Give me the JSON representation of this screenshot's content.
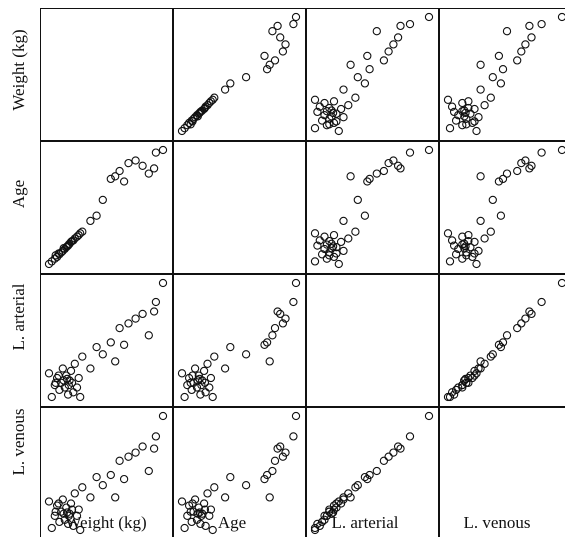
{
  "chart_data": {
    "type": "scatter",
    "variables": [
      "Weight (kg)",
      "Age",
      "L. arterial",
      "L. venous"
    ],
    "grid": false,
    "subjects": [
      {
        "weight": 10.6,
        "age": 1.6,
        "l_arterial": 21.0,
        "l_venous": 23.5
      },
      {
        "weight": 12.2,
        "age": 2.6,
        "l_arterial": 16.0,
        "l_venous": 17.0
      },
      {
        "weight": 13.9,
        "age": 3.6,
        "l_arterial": 18.5,
        "l_venous": 20.0
      },
      {
        "weight": 15.2,
        "age": 4.3,
        "l_arterial": 20.0,
        "l_venous": 22.5
      },
      {
        "weight": 16.5,
        "age": 5.3,
        "l_arterial": 17.5,
        "l_venous": 18.5
      },
      {
        "weight": 17.5,
        "age": 6.0,
        "l_arterial": 19.0,
        "l_venous": 21.0
      },
      {
        "weight": 18.4,
        "age": 6.6,
        "l_arterial": 22.0,
        "l_venous": 24.0
      },
      {
        "weight": 19.5,
        "age": 7.3,
        "l_arterial": 18.0,
        "l_venous": 19.0
      },
      {
        "weight": 20.4,
        "age": 8.0,
        "l_arterial": 20.5,
        "l_venous": 22.0
      },
      {
        "weight": 21.4,
        "age": 8.6,
        "l_arterial": 16.5,
        "l_venous": 18.0
      },
      {
        "weight": 22.2,
        "age": 9.3,
        "l_arterial": 19.5,
        "l_venous": 20.5
      },
      {
        "weight": 23.0,
        "age": 10.0,
        "l_arterial": 21.5,
        "l_venous": 23.0
      },
      {
        "weight": 24.3,
        "age": 10.6,
        "l_arterial": 17.0,
        "l_venous": 17.5
      },
      {
        "weight": 25.2,
        "age": 11.3,
        "l_arterial": 23.0,
        "l_venous": 25.5
      },
      {
        "weight": 26.4,
        "age": 12.0,
        "l_arterial": 18.0,
        "l_venous": 20.0
      },
      {
        "weight": 27.4,
        "age": 12.6,
        "l_arterial": 20.0,
        "l_venous": 21.5
      },
      {
        "weight": 28.2,
        "age": 13.3,
        "l_arterial": 16.0,
        "l_venous": 16.5
      },
      {
        "weight": 29.4,
        "age": 13.9,
        "l_arterial": 24.5,
        "l_venous": 27.0
      },
      {
        "weight": 14.4,
        "age": 4.9,
        "l_arterial": 19.0,
        "l_venous": 21.0
      },
      {
        "weight": 18.9,
        "age": 7.6,
        "l_arterial": 19.5,
        "l_venous": 20.5
      },
      {
        "weight": 21.8,
        "age": 9.0,
        "l_arterial": 18.5,
        "l_venous": 20.0
      },
      {
        "weight": 16.0,
        "age": 5.6,
        "l_arterial": 20.5,
        "l_venous": 23.0
      },
      {
        "weight": 23.6,
        "age": 10.3,
        "l_arterial": 19.0,
        "l_venous": 21.5
      },
      {
        "weight": 20.8,
        "age": 8.3,
        "l_arterial": 19.8,
        "l_venous": 20.8
      },
      {
        "weight": 34.0,
        "age": 18.0,
        "l_arterial": 22.0,
        "l_venous": 24.5
      },
      {
        "weight": 37.5,
        "age": 20.0,
        "l_arterial": 26.5,
        "l_venous": 29.5
      },
      {
        "weight": 41.0,
        "age": 26.0,
        "l_arterial": 25.0,
        "l_venous": 27.5
      },
      {
        "weight": 45.5,
        "age": 34.0,
        "l_arterial": 27.5,
        "l_venous": 30.0
      },
      {
        "weight": 48.0,
        "age": 35.0,
        "l_arterial": 23.5,
        "l_venous": 24.5
      },
      {
        "weight": 50.5,
        "age": 37.0,
        "l_arterial": 30.5,
        "l_venous": 33.5
      },
      {
        "weight": 53.0,
        "age": 33.0,
        "l_arterial": 27.0,
        "l_venous": 29.0
      },
      {
        "weight": 55.5,
        "age": 40.0,
        "l_arterial": 31.5,
        "l_venous": 34.5
      },
      {
        "weight": 59.5,
        "age": 41.0,
        "l_arterial": 32.5,
        "l_venous": 35.5
      },
      {
        "weight": 63.5,
        "age": 39.0,
        "l_arterial": 33.5,
        "l_venous": 37.0
      },
      {
        "weight": 67.0,
        "age": 36.0,
        "l_arterial": 29.0,
        "l_venous": 31.0
      },
      {
        "weight": 71.0,
        "age": 44.0,
        "l_arterial": 36.0,
        "l_venous": 39.5
      },
      {
        "weight": 75.0,
        "age": 45.0,
        "l_arterial": 40.0,
        "l_venous": 44.5
      },
      {
        "weight": 70.0,
        "age": 38.0,
        "l_arterial": 34.0,
        "l_venous": 36.5
      }
    ]
  }
}
